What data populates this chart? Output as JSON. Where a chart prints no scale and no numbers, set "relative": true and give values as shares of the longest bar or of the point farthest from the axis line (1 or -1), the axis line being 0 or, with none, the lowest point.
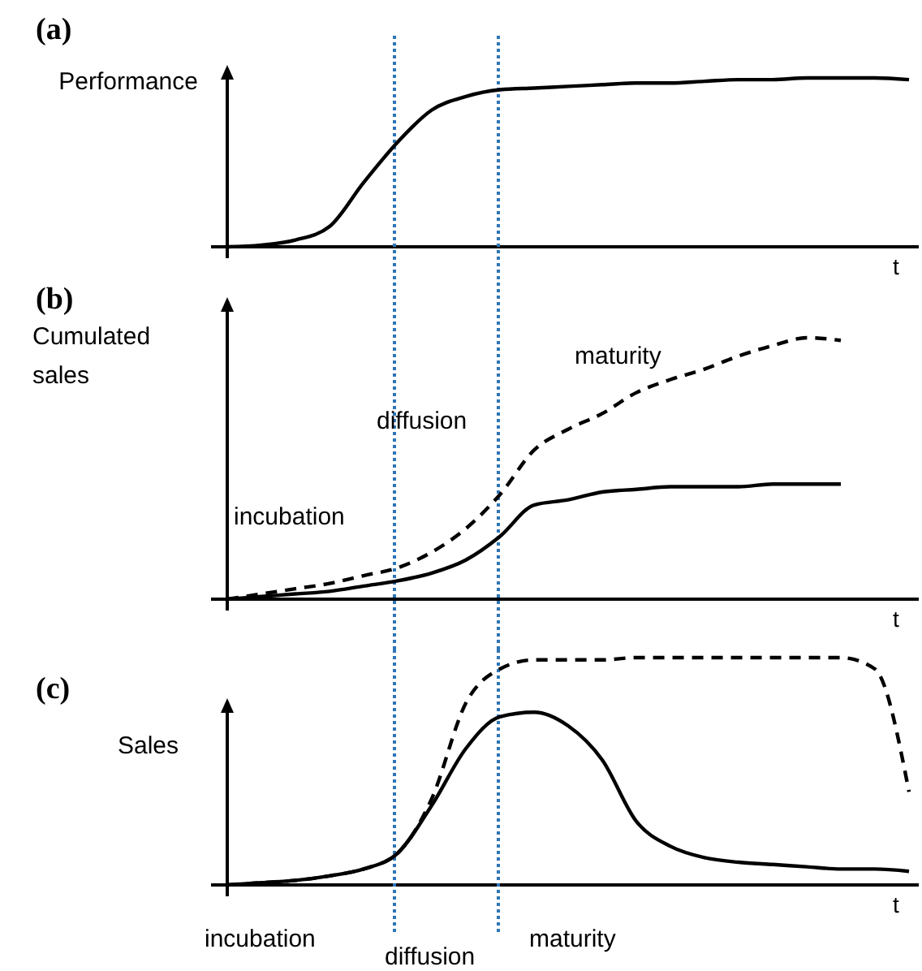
{
  "chart_data": [
    {
      "type": "line",
      "title": "(a)",
      "ylabel": "Performance",
      "xlabel": "t",
      "relative": true,
      "categories": [
        null,
        null,
        null,
        null,
        null,
        null,
        null,
        null,
        null,
        null,
        null,
        null,
        null,
        null,
        null,
        null,
        null,
        null,
        null,
        null,
        null
      ],
      "series": [
        {
          "color": "#000000",
          "line_style": "solid",
          "values": [
            0,
            0.01,
            0.04,
            0.12,
            0.38,
            0.62,
            0.81,
            0.89,
            0.93,
            0.94,
            0.95,
            0.96,
            0.97,
            0.97,
            0.98,
            0.99,
            0.99,
            1,
            1,
            1,
            0.99
          ]
        }
      ]
    },
    {
      "type": "line",
      "title": "(b)",
      "ylabel": "Cumulated sales",
      "xlabel": "t",
      "relative": true,
      "categories": [
        null,
        null,
        null,
        null,
        null,
        null,
        null,
        null,
        null,
        null,
        null,
        null,
        null,
        null,
        null,
        null,
        null,
        null,
        null,
        null,
        null
      ],
      "series": [
        {
          "color": "#000000",
          "line_style": "dashed",
          "values": [
            0,
            0.02,
            0.04,
            0.06,
            0.09,
            0.12,
            0.18,
            0.27,
            0.4,
            0.57,
            0.65,
            0.71,
            0.79,
            0.84,
            0.88,
            0.93,
            0.97,
            1,
            0.99,
            null,
            null
          ]
        },
        {
          "color": "#000000",
          "line_style": "solid",
          "values": [
            0,
            0.01,
            0.02,
            0.03,
            0.05,
            0.07,
            0.1,
            0.15,
            0.24,
            0.36,
            0.38,
            0.41,
            0.42,
            0.43,
            0.43,
            0.43,
            0.44,
            0.44,
            0.44,
            null,
            null
          ]
        }
      ],
      "annotations": [
        "incubation",
        "diffusion",
        "maturity"
      ]
    },
    {
      "type": "line",
      "title": "(c)",
      "ylabel": "Sales",
      "xlabel": "t",
      "relative": true,
      "categories": [
        null,
        null,
        null,
        null,
        null,
        null,
        null,
        null,
        null,
        null,
        null,
        null,
        null,
        null,
        null,
        null,
        null,
        null,
        null,
        null,
        null
      ],
      "series": [
        {
          "color": "#000000",
          "line_style": "dashed",
          "values": [
            0,
            0.01,
            0.02,
            0.04,
            0.07,
            0.14,
            0.38,
            0.8,
            0.95,
            0.99,
            0.99,
            0.99,
            1,
            1,
            1,
            1,
            1,
            1,
            1,
            0.95,
            0.41
          ]
        },
        {
          "color": "#000000",
          "line_style": "solid",
          "values": [
            0,
            0.01,
            0.02,
            0.04,
            0.07,
            0.14,
            0.35,
            0.6,
            0.74,
            0.76,
            0.7,
            0.55,
            0.28,
            0.17,
            0.12,
            0.1,
            0.09,
            0.08,
            0.07,
            0.07,
            0.06
          ]
        }
      ],
      "annotations": [
        "incubation",
        "diffusion",
        "maturity"
      ]
    }
  ]
}
